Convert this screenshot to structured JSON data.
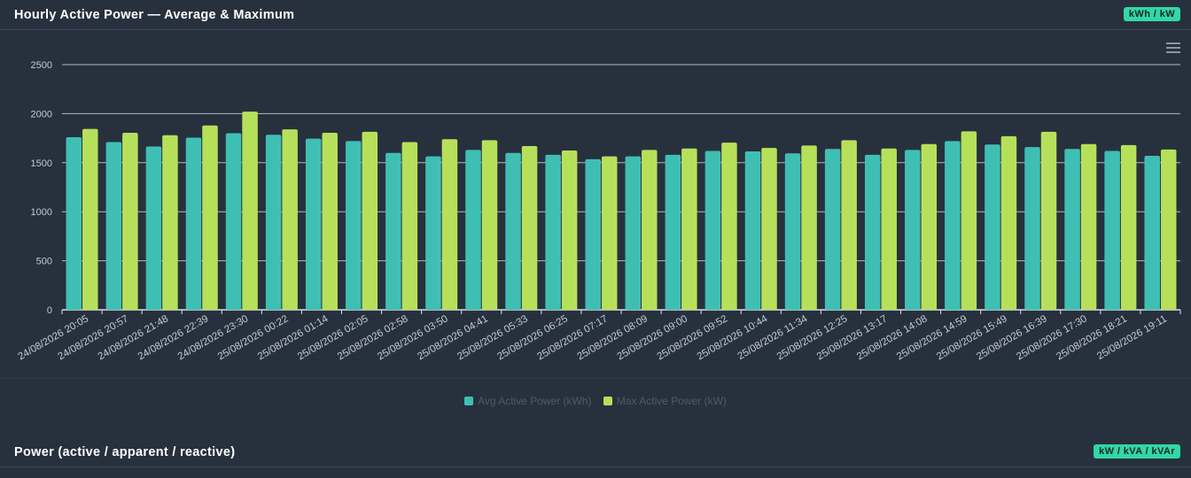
{
  "panel1": {
    "title": "Hourly Active Power — Average & Maximum",
    "badge": "kWh / kW"
  },
  "panel2": {
    "title": "Power (active / apparent / reactive)",
    "badge": "kW / kVA / kVAr"
  },
  "chart_data": {
    "type": "bar",
    "ylim": [
      0,
      2500
    ],
    "yticks": [
      0,
      500,
      1000,
      1500,
      2000,
      2500
    ],
    "grid": true,
    "legend": "bottom",
    "categories": [
      "24/08/2026 20:05",
      "24/08/2026 20:57",
      "24/08/2026 21:48",
      "24/08/2026 22:39",
      "24/08/2026 23:30",
      "25/08/2026 00:22",
      "25/08/2026 01:14",
      "25/08/2026 02:05",
      "25/08/2026 02:58",
      "25/08/2026 03:50",
      "25/08/2026 04:41",
      "25/08/2026 05:33",
      "25/08/2026 06:25",
      "25/08/2026 07:17",
      "25/08/2026 08:09",
      "25/08/2026 09:00",
      "25/08/2026 09:52",
      "25/08/2026 10:44",
      "25/08/2026 11:34",
      "25/08/2026 12:25",
      "25/08/2026 13:17",
      "25/08/2026 14:08",
      "25/08/2026 14:59",
      "25/08/2026 15:49",
      "25/08/2026 16:39",
      "25/08/2026 17:30",
      "25/08/2026 18:21",
      "25/08/2026 19:11"
    ],
    "series": [
      {
        "name": "Avg Active Power (kWh)",
        "color": "#3fbfb4",
        "values": [
          1760,
          1710,
          1665,
          1755,
          1800,
          1785,
          1745,
          1720,
          1600,
          1565,
          1630,
          1600,
          1580,
          1535,
          1565,
          1580,
          1620,
          1615,
          1595,
          1640,
          1580,
          1630,
          1720,
          1685,
          1660,
          1640,
          1620,
          1570
        ]
      },
      {
        "name": "Max Active Power (kW)",
        "color": "#b7e05a",
        "values": [
          1845,
          1805,
          1780,
          1880,
          2020,
          1840,
          1805,
          1815,
          1710,
          1740,
          1730,
          1670,
          1625,
          1565,
          1630,
          1645,
          1705,
          1650,
          1675,
          1730,
          1645,
          1690,
          1820,
          1770,
          1815,
          1690,
          1680,
          1635
        ]
      }
    ]
  }
}
